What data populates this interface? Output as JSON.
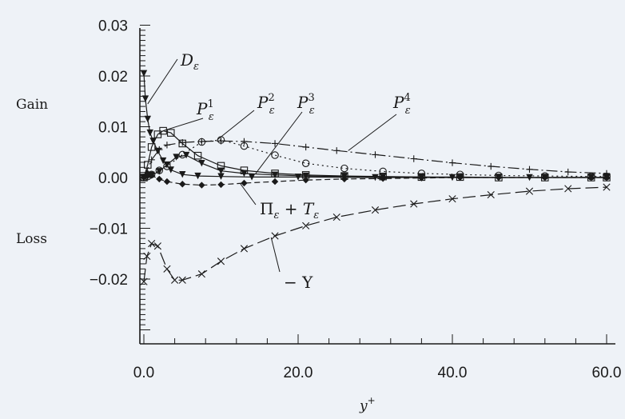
{
  "chart_data": {
    "type": "line",
    "xlabel": "y",
    "xlabel_sup": "+",
    "ylabel": "",
    "xlim": [
      -0.8,
      60
    ],
    "ylim": [
      -0.03,
      0.03
    ],
    "x_ticks": [
      "0.0",
      "20.0",
      "40.0",
      "60.0"
    ],
    "y_ticks": [
      "0.03",
      "0.02",
      "0.01",
      "0.00",
      "−0.01",
      "−0.02"
    ],
    "side_labels": [
      "Gain",
      "Loss"
    ],
    "grid": false,
    "series": [
      {
        "name": "Dε",
        "marker": "triangle-down",
        "dash": "",
        "x": [
          0,
          0.2,
          0.5,
          0.8,
          1.2,
          1.8,
          2.5,
          3.5,
          5,
          7,
          10,
          14,
          20,
          30,
          40,
          50,
          60
        ],
        "y": [
          0.0205,
          0.0155,
          0.0115,
          0.0088,
          0.0072,
          0.0052,
          0.0033,
          0.0015,
          0.0006,
          0.0003,
          0.0002,
          0.0001,
          0.0001,
          0.0,
          0.0,
          0.0,
          0.0
        ]
      },
      {
        "name": "Pε¹",
        "marker": "square",
        "dash": "",
        "x": [
          0,
          0.5,
          1,
          1.8,
          2.5,
          3.5,
          5,
          7,
          10,
          13,
          17,
          21,
          26,
          31,
          36,
          41,
          46,
          52,
          58,
          60
        ],
        "y": [
          0.0,
          0.0025,
          0.006,
          0.0085,
          0.0092,
          0.0088,
          0.0067,
          0.0043,
          0.0023,
          0.0014,
          0.0008,
          0.0005,
          0.0003,
          0.0002,
          0.0001,
          0.0001,
          0.0,
          0.0,
          0.0,
          0.0
        ]
      },
      {
        "name": "Pε²",
        "marker": "circle",
        "dash": "2,4",
        "x": [
          0,
          0.5,
          1,
          2,
          3,
          5,
          7.5,
          10,
          13,
          17,
          21,
          26,
          31,
          36,
          41,
          46,
          52,
          58,
          60
        ],
        "y": [
          0.0,
          0.0002,
          0.0006,
          0.0014,
          0.0022,
          0.0045,
          0.007,
          0.0074,
          0.0062,
          0.0044,
          0.0028,
          0.0018,
          0.0012,
          0.0008,
          0.0006,
          0.0004,
          0.0003,
          0.0002,
          0.0002
        ]
      },
      {
        "name": "Pε³",
        "marker": "triangle-down",
        "dash": "",
        "x": [
          0,
          0.5,
          1,
          2,
          3,
          4.2,
          5.5,
          7.5,
          10,
          13,
          17,
          21,
          26,
          31,
          36,
          41,
          46,
          52,
          58,
          60
        ],
        "y": [
          0.0,
          0.0002,
          0.0005,
          0.0012,
          0.0025,
          0.004,
          0.0044,
          0.0028,
          0.0013,
          0.0008,
          0.0005,
          0.0003,
          0.0002,
          0.0001,
          0.0001,
          0.0,
          0.0,
          0.0,
          0.0,
          0.0
        ]
      },
      {
        "name": "Pε⁴",
        "marker": "plus",
        "dash": "14,4,2,4",
        "x": [
          0,
          1,
          2,
          3,
          5,
          7.5,
          10,
          13,
          17,
          21,
          25,
          30,
          35,
          40,
          45,
          50,
          55,
          60
        ],
        "y": [
          0.0,
          0.0035,
          0.0055,
          0.0064,
          0.0069,
          0.0071,
          0.0072,
          0.0071,
          0.0067,
          0.006,
          0.0053,
          0.0045,
          0.0037,
          0.0029,
          0.0022,
          0.0016,
          0.0011,
          0.0008
        ]
      },
      {
        "name": "Πε + Tε",
        "marker": "diamond",
        "dash": "7,4",
        "x": [
          0,
          0.5,
          1,
          2,
          3,
          5,
          7.5,
          10,
          13,
          17,
          21,
          26,
          31,
          36,
          41,
          46,
          52,
          58,
          60
        ],
        "y": [
          0.0,
          0.0008,
          0.0004,
          -0.0003,
          -0.0008,
          -0.0013,
          -0.0015,
          -0.0014,
          -0.0011,
          -0.0008,
          -0.0005,
          -0.0003,
          -0.0002,
          -0.0001,
          0.0,
          0.0,
          0.0,
          0.0,
          0.0
        ]
      },
      {
        "name": "− Υ",
        "marker": "x",
        "dash": "16,6",
        "x": [
          0,
          0.4,
          1,
          1.8,
          3,
          4,
          5,
          7.5,
          10,
          13,
          17,
          21,
          25,
          30,
          35,
          40,
          45,
          50,
          55,
          60
        ],
        "y": [
          -0.0205,
          -0.0155,
          -0.013,
          -0.0135,
          -0.018,
          -0.0202,
          -0.0202,
          -0.019,
          -0.0165,
          -0.014,
          -0.0115,
          -0.0095,
          -0.0078,
          -0.0064,
          -0.0052,
          -0.0042,
          -0.0034,
          -0.0027,
          -0.0022,
          -0.0019
        ]
      }
    ],
    "annotations": [
      {
        "text": "D",
        "sub": "ε",
        "sup": "",
        "series": 0
      },
      {
        "text": "P",
        "sub": "ε",
        "sup": "1",
        "series": 1
      },
      {
        "text": "P",
        "sub": "ε",
        "sup": "2",
        "series": 2
      },
      {
        "text": "P",
        "sub": "ε",
        "sup": "3",
        "series": 3
      },
      {
        "text": "P",
        "sub": "ε",
        "sup": "4",
        "series": 4
      },
      {
        "text": "Π",
        "sub": "ε",
        "text2": " + T",
        "sub2": "ε",
        "series": 5
      },
      {
        "text": "− Υ",
        "series": 6
      }
    ],
    "colors": {
      "background": "#eef2f7",
      "ink": "#1a1a1a"
    }
  }
}
